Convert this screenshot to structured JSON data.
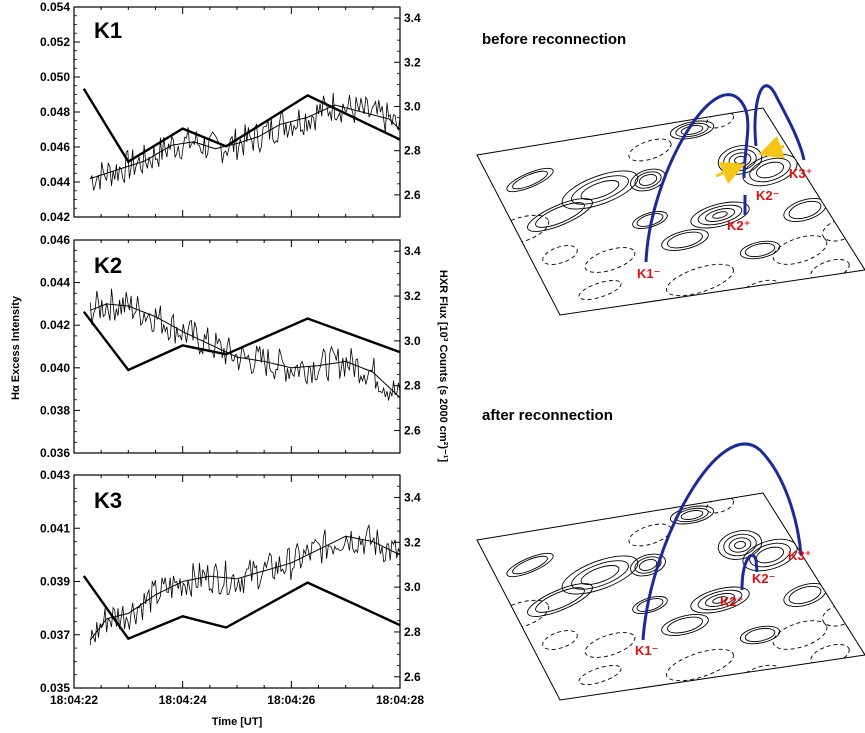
{
  "chart_data": {
    "type": "line",
    "shared_x": {
      "xlabel": "Time [UT]",
      "tick_labels": [
        "18:04:22",
        "18:04:24",
        "18:04:26",
        "18:04:28"
      ],
      "xlim_seconds_after_18_04_22": [
        0,
        6
      ]
    },
    "left_axis_label": "Hα Excess Intensity",
    "right_axis_label": "HXR Flux [10³ Counts (s 2000 cm²)⁻¹]",
    "panels": [
      {
        "name": "K1",
        "ylim_left": [
          0.042,
          0.054
        ],
        "yticks_left": [
          "0.042",
          "0.044",
          "0.046",
          "0.048",
          "0.050",
          "0.052",
          "0.054"
        ],
        "ylim_right": [
          2.5,
          3.45
        ],
        "yticks_right": [
          "2.6",
          "2.8",
          "3.0",
          "3.2",
          "3.4"
        ],
        "hxr_t": [
          0.18,
          1.0,
          2.0,
          2.8,
          4.3,
          6.0
        ],
        "hxr_values": [
          3.08,
          2.75,
          2.9,
          2.82,
          3.05,
          2.85
        ],
        "smooth_t": [
          0.3,
          0.6,
          1.0,
          1.3,
          1.8,
          2.2,
          2.6,
          3.0,
          3.4,
          3.8,
          4.3,
          4.8,
          5.3,
          5.8,
          6.0
        ],
        "smooth_values": [
          0.0442,
          0.0445,
          0.0449,
          0.0452,
          0.0461,
          0.0463,
          0.0459,
          0.0462,
          0.0466,
          0.0473,
          0.0477,
          0.0484,
          0.048,
          0.0476,
          0.047
        ]
      },
      {
        "name": "K2",
        "ylim_left": [
          0.036,
          0.046
        ],
        "yticks_left": [
          "0.036",
          "0.038",
          "0.040",
          "0.042",
          "0.044",
          "0.046"
        ],
        "ylim_right": [
          2.5,
          3.45
        ],
        "yticks_right": [
          "2.6",
          "2.8",
          "3.0",
          "3.2",
          "3.4"
        ],
        "hxr_t": [
          0.18,
          1.0,
          2.0,
          2.8,
          4.3,
          6.0
        ],
        "hxr_values": [
          3.13,
          2.87,
          2.98,
          2.94,
          3.1,
          2.95
        ],
        "smooth_t": [
          0.3,
          0.6,
          1.0,
          1.5,
          2.0,
          2.5,
          3.0,
          3.5,
          4.0,
          4.5,
          5.0,
          5.5,
          6.0
        ],
        "smooth_values": [
          0.0427,
          0.043,
          0.0429,
          0.0424,
          0.0417,
          0.0411,
          0.0405,
          0.0403,
          0.04,
          0.0401,
          0.0403,
          0.0398,
          0.0386
        ]
      },
      {
        "name": "K3",
        "ylim_left": [
          0.035,
          0.043
        ],
        "yticks_left": [
          "0.035",
          "0.037",
          "0.039",
          "0.041",
          "0.043"
        ],
        "ylim_right": [
          2.55,
          3.5
        ],
        "yticks_right": [
          "2.6",
          "2.8",
          "3.0",
          "3.2",
          "3.4"
        ],
        "hxr_t": [
          0.18,
          1.0,
          2.0,
          2.8,
          4.3,
          5.2,
          6.0
        ],
        "hxr_values": [
          3.05,
          2.77,
          2.87,
          2.82,
          3.02,
          2.92,
          2.83
        ],
        "smooth_t": [
          0.3,
          0.6,
          1.0,
          1.5,
          2.0,
          2.5,
          3.0,
          3.5,
          4.0,
          4.5,
          5.0,
          5.5,
          6.0
        ],
        "smooth_values": [
          0.0368,
          0.0376,
          0.0378,
          0.0385,
          0.039,
          0.0392,
          0.0391,
          0.0394,
          0.0397,
          0.0402,
          0.0407,
          0.0405,
          0.04
        ]
      }
    ]
  },
  "schematic": {
    "before_title": "before reconnection",
    "after_title": "after reconnection",
    "footpoints": {
      "k1": "K1⁻",
      "k2_plus": "K2⁺",
      "k2_minus": "K2⁻",
      "k3": "K3⁺"
    },
    "loop_color": "#1a2a9a",
    "label_color": "#e01010",
    "arrow_color": "#f5c518"
  }
}
